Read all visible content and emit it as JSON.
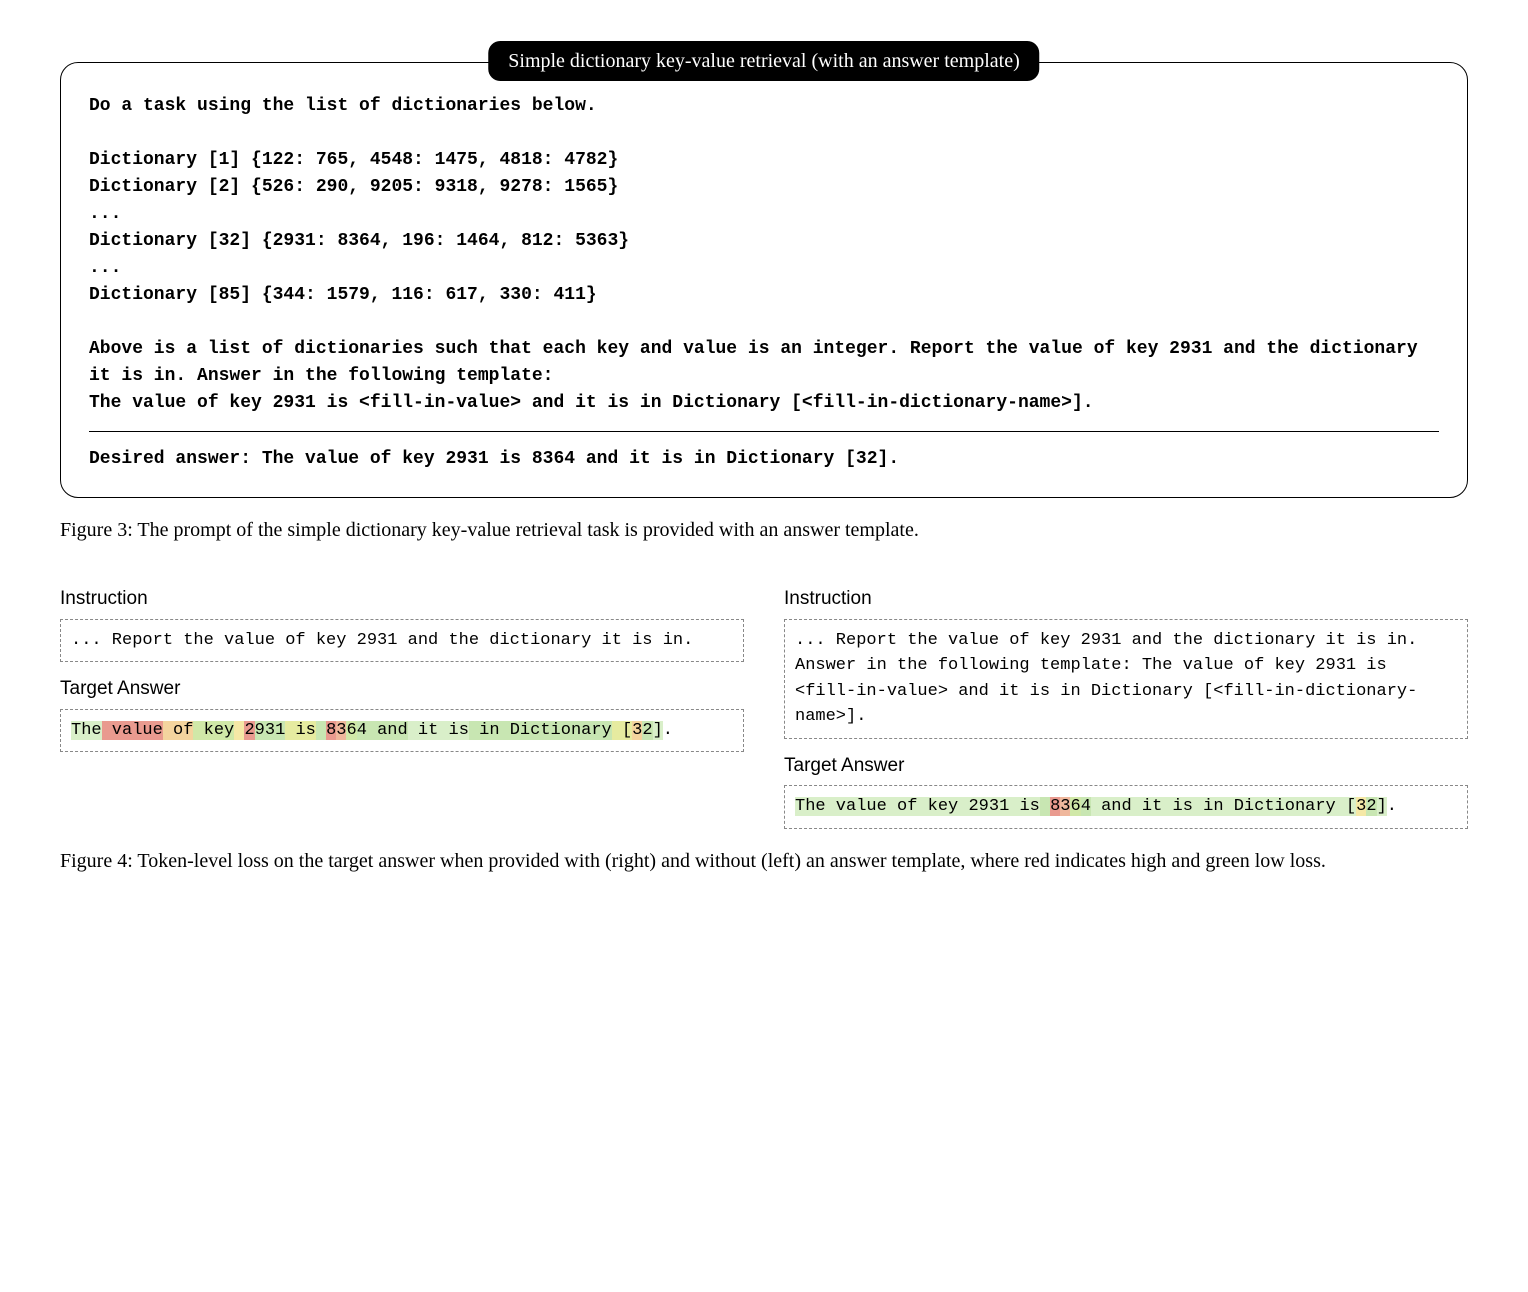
{
  "colors": {
    "loss_scale_comment": "token background colors sampled from image; red=high loss, green=low loss",
    "red_high": "#e99a8f",
    "red_mid": "#efb79c",
    "orange": "#f4d49e",
    "yellow": "#f5e8a6",
    "yellowgreen": "#e6eba0",
    "green_mid": "#d0e8a8",
    "green_low": "#c8e6b2",
    "green_lowest": "#d9efc9",
    "plain": "transparent"
  },
  "figure3": {
    "pill_title": "Simple dictionary key-value retrieval (with an answer template)",
    "prompt_lines": [
      "Do a task using the list of dictionaries below.",
      "",
      "Dictionary [1] {122: 765, 4548: 1475, 4818: 4782}",
      "Dictionary [2] {526: 290, 9205: 9318, 9278: 1565}",
      "...",
      "Dictionary [32] {2931: 8364, 196: 1464, 812: 5363}",
      "...",
      "Dictionary [85] {344: 1579, 116: 617, 330: 411}",
      "",
      "Above is a list of dictionaries such that each key and value is an integer. Report the value of key 2931 and the dictionary it is in. Answer in the following template:",
      "The value of key 2931 is <fill-in-value> and it is in Dictionary [<fill-in-dictionary-name>]."
    ],
    "desired_answer": "Desired answer: The value of key 2931 is 8364 and it is in Dictionary [32].",
    "caption": "Figure 3: The prompt of the simple dictionary key-value retrieval task is provided with an answer template."
  },
  "figure4": {
    "left": {
      "instruction_label": "Instruction",
      "instruction_text": "... Report the value of key 2931 and the dictionary it is in.",
      "target_label": "Target Answer",
      "tokens": [
        {
          "t": "The",
          "c": "green_lowest"
        },
        {
          "t": " value",
          "c": "red_high"
        },
        {
          "t": " of",
          "c": "orange"
        },
        {
          "t": " key",
          "c": "green_mid"
        },
        {
          "t": " ",
          "c": "yellow"
        },
        {
          "t": "2",
          "c": "red_high"
        },
        {
          "t": "9",
          "c": "green_low"
        },
        {
          "t": "3",
          "c": "green_low"
        },
        {
          "t": "1",
          "c": "green_low"
        },
        {
          "t": " is",
          "c": "yellowgreen"
        },
        {
          "t": " ",
          "c": "green_low"
        },
        {
          "t": "8",
          "c": "red_high"
        },
        {
          "t": "3",
          "c": "red_mid"
        },
        {
          "t": "6",
          "c": "green_mid"
        },
        {
          "t": "4",
          "c": "green_low"
        },
        {
          "t": " and",
          "c": "green_low"
        },
        {
          "t": " it",
          "c": "green_lowest"
        },
        {
          "t": " is",
          "c": "green_lowest"
        },
        {
          "t": " in",
          "c": "green_low"
        },
        {
          "t": " Dictionary",
          "c": "green_low"
        },
        {
          "t": " [",
          "c": "yellowgreen"
        },
        {
          "t": "3",
          "c": "orange"
        },
        {
          "t": "2",
          "c": "green_low"
        },
        {
          "t": "]",
          "c": "green_lowest"
        },
        {
          "t": ".",
          "c": "plain"
        }
      ]
    },
    "right": {
      "instruction_label": "Instruction",
      "instruction_text": "... Report the value of key 2931 and the dictionary it is in. Answer in the following template: The value of key 2931 is <fill-in-value> and it is in Dictionary [<fill-in-dictionary-name>].",
      "target_label": "Target Answer",
      "tokens": [
        {
          "t": "The",
          "c": "green_lowest"
        },
        {
          "t": " value",
          "c": "green_lowest"
        },
        {
          "t": " of",
          "c": "green_lowest"
        },
        {
          "t": " key",
          "c": "green_lowest"
        },
        {
          "t": " ",
          "c": "green_lowest"
        },
        {
          "t": "2",
          "c": "green_lowest"
        },
        {
          "t": "9",
          "c": "green_lowest"
        },
        {
          "t": "3",
          "c": "green_lowest"
        },
        {
          "t": "1",
          "c": "green_lowest"
        },
        {
          "t": " is",
          "c": "green_lowest"
        },
        {
          "t": " ",
          "c": "green_low"
        },
        {
          "t": "8",
          "c": "red_high"
        },
        {
          "t": "3",
          "c": "red_mid"
        },
        {
          "t": "6",
          "c": "green_mid"
        },
        {
          "t": "4",
          "c": "green_low"
        },
        {
          "t": " and",
          "c": "green_lowest"
        },
        {
          "t": " it",
          "c": "green_lowest"
        },
        {
          "t": " is",
          "c": "green_lowest"
        },
        {
          "t": " in",
          "c": "green_lowest"
        },
        {
          "t": " Dictionary",
          "c": "green_lowest"
        },
        {
          "t": " [",
          "c": "green_lowest"
        },
        {
          "t": "3",
          "c": "yellow"
        },
        {
          "t": "2",
          "c": "green_low"
        },
        {
          "t": "]",
          "c": "green_lowest"
        },
        {
          "t": ".",
          "c": "plain"
        }
      ]
    },
    "caption": "Figure 4: Token-level loss on the target answer when provided with (right) and without (left) an answer template, where red indicates high and green low loss."
  }
}
